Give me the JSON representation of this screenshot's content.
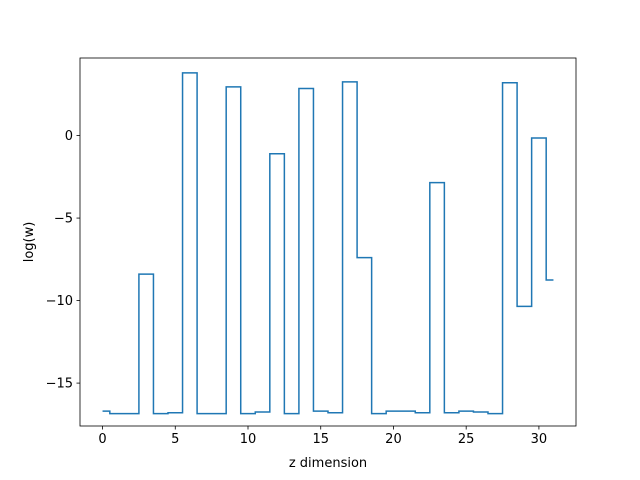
{
  "chart_data": {
    "type": "line",
    "drawstyle": "steps-mid",
    "xlabel": "z dimension",
    "ylabel": "log(w)",
    "xlim": [
      -1.55,
      32.55
    ],
    "ylim": [
      -17.6,
      4.7
    ],
    "xticks": [
      0,
      5,
      10,
      15,
      20,
      25,
      30
    ],
    "yticks": [
      -15,
      -10,
      -5,
      0
    ],
    "ytick_labels": [
      "−15",
      "−10",
      "−5",
      "0"
    ],
    "grid": false,
    "series": [
      {
        "color": "#1f77b4",
        "x": [
          0,
          1,
          2,
          3,
          4,
          5,
          6,
          7,
          8,
          9,
          10,
          11,
          12,
          13,
          14,
          15,
          16,
          17,
          18,
          19,
          20,
          21,
          22,
          23,
          24,
          25,
          26,
          27,
          28,
          29,
          30,
          31
        ],
        "y": [
          -16.7,
          -16.85,
          -16.85,
          -8.4,
          -16.85,
          -16.8,
          3.8,
          -16.85,
          -16.85,
          2.95,
          -16.85,
          -16.75,
          -1.1,
          -16.85,
          2.85,
          -16.7,
          -16.8,
          3.25,
          -7.4,
          -16.85,
          -16.7,
          -16.7,
          -16.8,
          -2.85,
          -16.8,
          -16.7,
          -16.75,
          -16.85,
          3.2,
          -10.35,
          -0.15,
          -8.75
        ]
      }
    ]
  }
}
